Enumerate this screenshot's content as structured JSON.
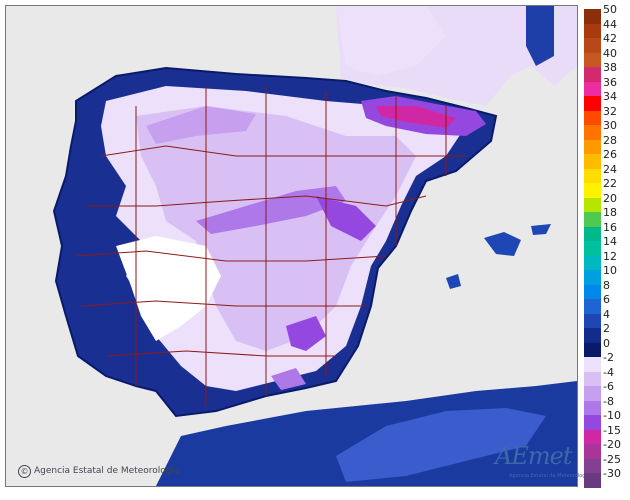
{
  "credit_text": "Agencia Estatal de Meteorología",
  "credit_symbol": "©",
  "logo": {
    "text": "AEmet",
    "subtitle": "Agencia Estatal de Meteorología"
  },
  "legend": {
    "warm": [
      {
        "label": "50",
        "color": "#8b2e0a"
      },
      {
        "label": "44",
        "color": "#a83a0f"
      },
      {
        "label": "42",
        "color": "#b84817"
      },
      {
        "label": "40",
        "color": "#c45a22"
      },
      {
        "label": "38",
        "color": "#d22a6e"
      },
      {
        "label": "36",
        "color": "#ec2c9f"
      },
      {
        "label": "34",
        "color": "#ff0000"
      },
      {
        "label": "32",
        "color": "#ff4a00"
      },
      {
        "label": "30",
        "color": "#ff7300"
      },
      {
        "label": "28",
        "color": "#ff9900"
      },
      {
        "label": "26",
        "color": "#ffbb00"
      },
      {
        "label": "24",
        "color": "#ffdd00"
      },
      {
        "label": "22",
        "color": "#fff200"
      },
      {
        "label": "20",
        "color": "#b6e600"
      },
      {
        "label": "18",
        "color": "#4fc94f"
      },
      {
        "label": "16",
        "color": "#00b88a"
      },
      {
        "label": "14",
        "color": "#00c0a0"
      },
      {
        "label": "12",
        "color": "#00b8c0"
      },
      {
        "label": "10",
        "color": "#00a0e0"
      },
      {
        "label": "8",
        "color": "#0088e8"
      },
      {
        "label": "6",
        "color": "#1e64d2"
      },
      {
        "label": "4",
        "color": "#1e46b4"
      },
      {
        "label": "2",
        "color": "#142b8c"
      },
      {
        "label": "0",
        "color": "#0a1a6a"
      }
    ],
    "cold": [
      {
        "label": "-2",
        "color": "#ece0fb"
      },
      {
        "label": "-4",
        "color": "#d8c0f4"
      },
      {
        "label": "-6",
        "color": "#c6a0ee"
      },
      {
        "label": "-8",
        "color": "#ae78e8"
      },
      {
        "label": "-10",
        "color": "#9448e0"
      },
      {
        "label": "-15",
        "color": "#d028a4"
      },
      {
        "label": "-20",
        "color": "#a8359a"
      },
      {
        "label": "-25",
        "color": "#844090"
      },
      {
        "label": "-30",
        "color": "#6a3a80"
      }
    ]
  }
}
